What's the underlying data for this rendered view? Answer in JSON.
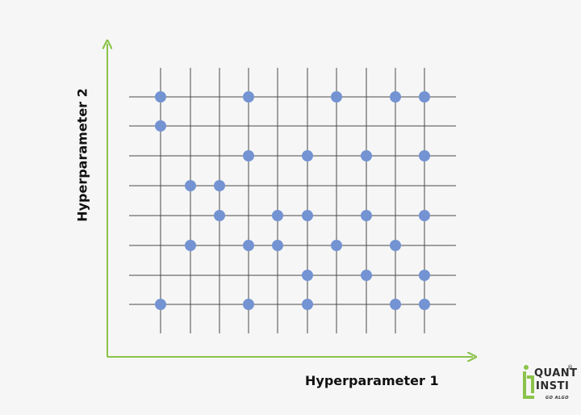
{
  "diagram": {
    "x_axis_label": "Hyperparameter 1",
    "y_axis_label": "Hyperparameter 2",
    "grid": {
      "columns": 10,
      "rows": 8
    },
    "points": [
      [
        0,
        0
      ],
      [
        3,
        0
      ],
      [
        6,
        0
      ],
      [
        8,
        0
      ],
      [
        9,
        0
      ],
      [
        0,
        1
      ],
      [
        3,
        2
      ],
      [
        5,
        2
      ],
      [
        7,
        2
      ],
      [
        9,
        2
      ],
      [
        1,
        3
      ],
      [
        2,
        3
      ],
      [
        2,
        4
      ],
      [
        4,
        4
      ],
      [
        5,
        4
      ],
      [
        7,
        4
      ],
      [
        9,
        4
      ],
      [
        1,
        5
      ],
      [
        3,
        5
      ],
      [
        4,
        5
      ],
      [
        6,
        5
      ],
      [
        8,
        5
      ],
      [
        5,
        6
      ],
      [
        7,
        6
      ],
      [
        9,
        6
      ],
      [
        0,
        7
      ],
      [
        3,
        7
      ],
      [
        5,
        7
      ],
      [
        8,
        7
      ],
      [
        9,
        7
      ]
    ],
    "colors": {
      "axis": "#8bc34a",
      "grid_line": "#4a4a4a",
      "point": "#7393d3",
      "background": "#f6f6f6"
    }
  },
  "logo": {
    "line1": "QUANT",
    "line2": "INSTI",
    "tagline": "GO ALGO",
    "registered": "®",
    "colors": {
      "green": "#8bc34a",
      "dark": "#2b2b2b"
    }
  }
}
